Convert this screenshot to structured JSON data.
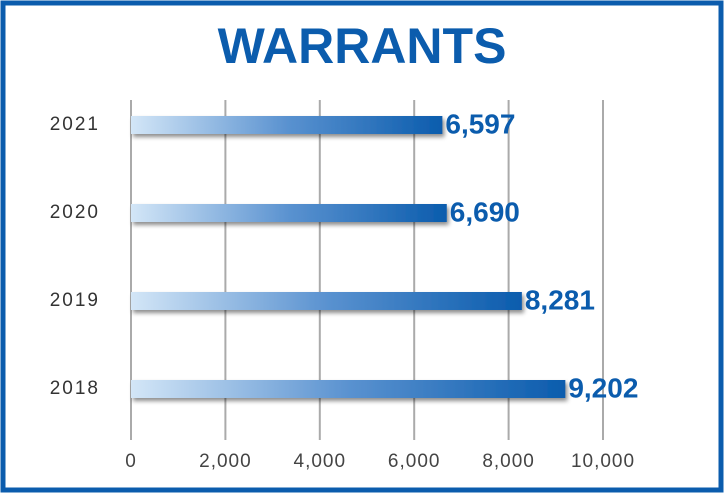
{
  "chart_data": {
    "type": "bar",
    "orientation": "horizontal",
    "title": "WARRANTS",
    "categories": [
      "2021",
      "2020",
      "2019",
      "2018"
    ],
    "values": [
      6597,
      6690,
      8281,
      9202
    ],
    "value_labels": [
      "6,597",
      "6,690",
      "8,281",
      "9,202"
    ],
    "color": "#0b5cad",
    "xlim": [
      0,
      10000
    ],
    "xticks": [
      0,
      {
        "value": 2000,
        "label": "2,000"
      },
      {
        "value": 4000,
        "label": "4,000"
      },
      {
        "value": 6000,
        "label": "6,000"
      },
      {
        "value": 8000,
        "label": "8,000"
      },
      {
        "value": 10000,
        "label": "10,000"
      }
    ],
    "grid": true
  }
}
